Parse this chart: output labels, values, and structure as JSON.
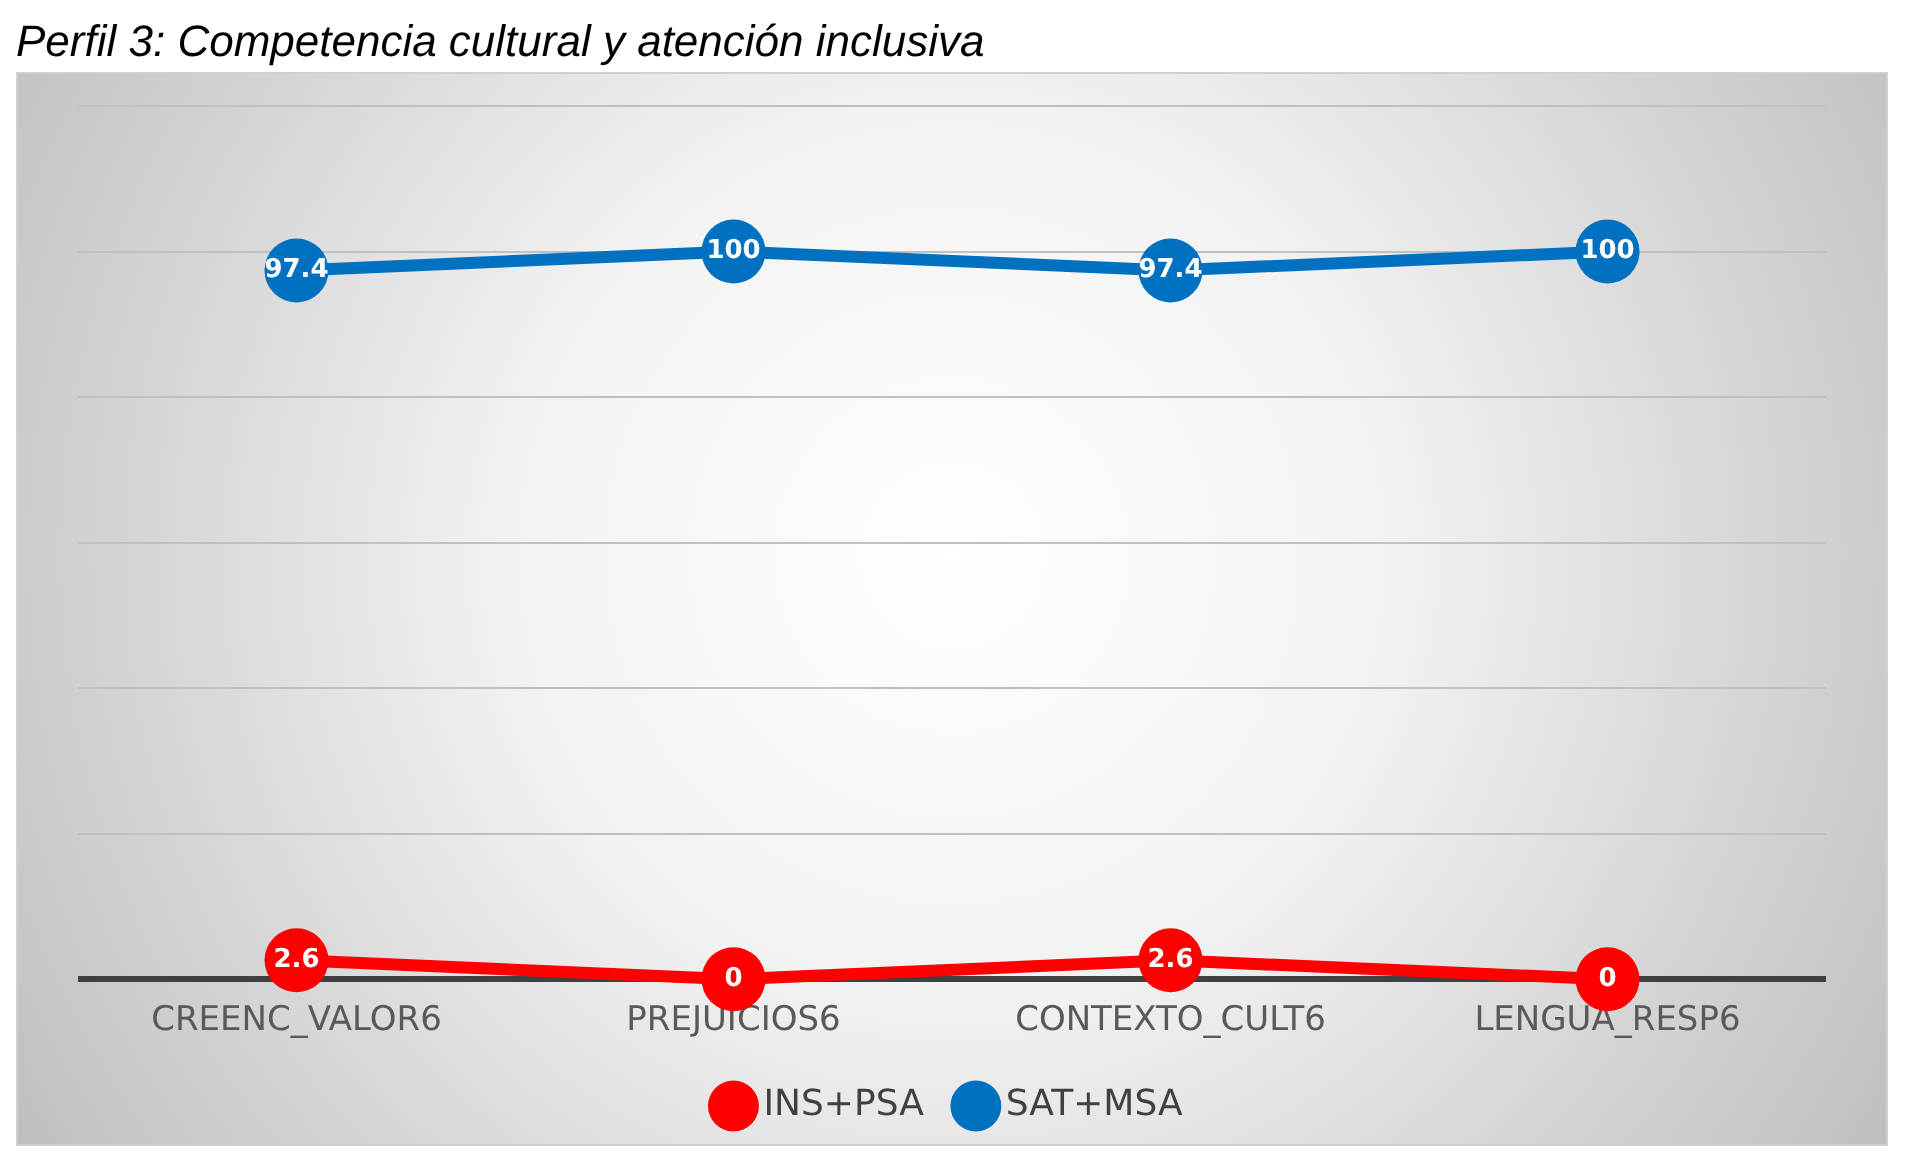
{
  "chart_data": {
    "type": "line",
    "title": "Perfil 3: Competencia cultural y atención inclusiva",
    "categories": [
      "CREENC_VALOR6",
      "PREJUICIOS6",
      "CONTEXTO_CULT6",
      "LENGUA_RESP6"
    ],
    "series": [
      {
        "name": "INS+PSA",
        "color": "#ff0000",
        "values": [
          2.6,
          0,
          2.6,
          0
        ]
      },
      {
        "name": "SAT+MSA",
        "color": "#0070c0",
        "values": [
          97.4,
          100,
          97.4,
          100
        ]
      }
    ],
    "ylim": [
      0,
      120
    ],
    "yticks": [
      {
        "value": 0,
        "label": null
      },
      {
        "value": 20,
        "label": null
      },
      {
        "value": 40,
        "label": null
      },
      {
        "value": 60,
        "label": null
      },
      {
        "value": 80,
        "label": null
      },
      {
        "value": 100,
        "label": null
      },
      {
        "value": 120,
        "label": null
      }
    ],
    "grid": "y",
    "legend": "bottom",
    "tick_labels": "x",
    "marker": "circle",
    "line_style": "solid",
    "data_labels": true
  }
}
